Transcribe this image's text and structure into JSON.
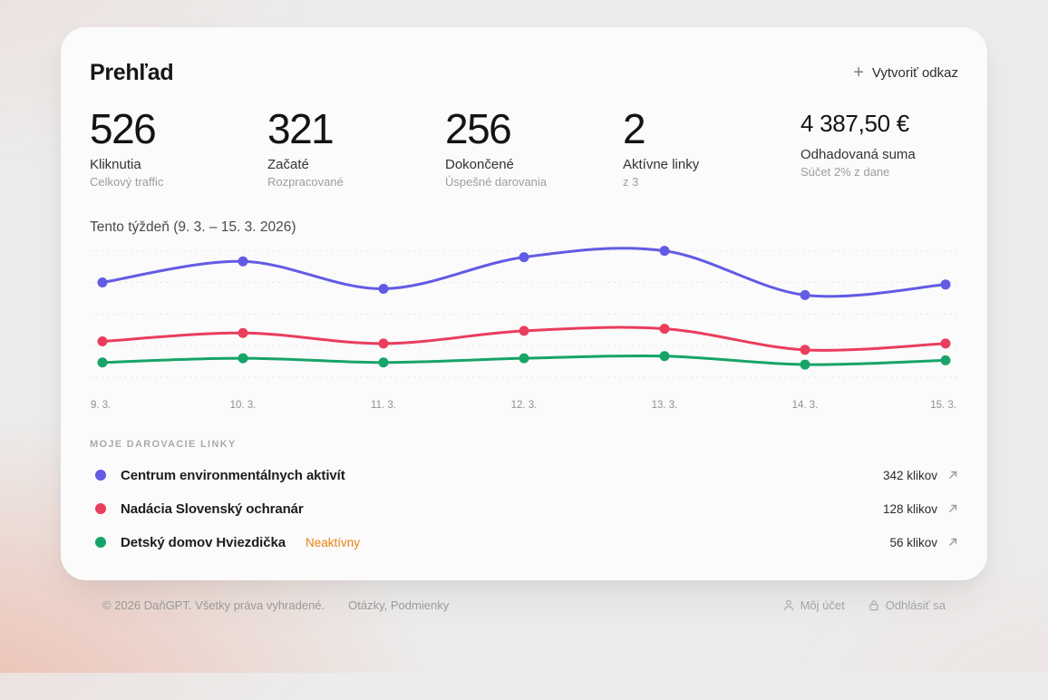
{
  "header": {
    "title": "Prehľad",
    "create_link_label": "Vytvoriť odkaz"
  },
  "stats": [
    {
      "value": "526",
      "label": "Kliknutia",
      "sublabel": "Celkový traffic",
      "small": false
    },
    {
      "value": "321",
      "label": "Začaté",
      "sublabel": "Rozpracované",
      "small": false
    },
    {
      "value": "256",
      "label": "Dokončené",
      "sublabel": "Úspešné darovania",
      "small": false
    },
    {
      "value": "2",
      "label": "Aktívne linky",
      "sublabel": "z 3",
      "small": false
    },
    {
      "value": "4 387,50 €",
      "label": "Odhadovaná suma",
      "sublabel": "Súčet 2% z dane",
      "small": true
    }
  ],
  "chart_data": {
    "type": "line",
    "title": "Tento týždeň (9. 3. – 15. 3. 2026)",
    "x": [
      "9. 3.",
      "10. 3.",
      "11. 3.",
      "12. 3.",
      "13. 3.",
      "14. 3.",
      "15. 3."
    ],
    "series": [
      {
        "name": "Centrum environmentálnych aktivít",
        "color": "#625be4",
        "values": [
          45,
          55,
          42,
          57,
          60,
          39,
          44
        ]
      },
      {
        "name": "Nadácia Slovenský ochranár",
        "color": "#ea3d5e",
        "values": [
          17,
          21,
          16,
          22,
          23,
          13,
          16
        ]
      },
      {
        "name": "Detský domov Hviezdička",
        "color": "#18a468",
        "values": [
          7,
          9,
          7,
          9,
          10,
          6,
          8
        ]
      }
    ],
    "ylim": [
      0,
      62
    ],
    "gridlines": [
      0,
      15,
      30,
      45,
      60
    ],
    "grid": "horizontal-dashed",
    "legend": "none",
    "grid_color": "#dedede"
  },
  "links_section": {
    "heading": "MOJE DAROVACIE LINKY",
    "items": [
      {
        "name": "Centrum environmentálnych aktivít",
        "color": "#625be4",
        "clicks": "342 klikov",
        "badge": ""
      },
      {
        "name": "Nadácia Slovenský ochranár",
        "color": "#ea3d5e",
        "clicks": "128 klikov",
        "badge": ""
      },
      {
        "name": "Detský domov Hviezdička",
        "color": "#18a468",
        "clicks": "56 klikov",
        "badge": "Neaktívny"
      }
    ]
  },
  "footer": {
    "copyright": "© 2026 DaňGPT. Všetky práva vyhradené.",
    "links": [
      "Otázky",
      "Podmienky"
    ],
    "account": "Môj účet",
    "logout": "Odhlásiť sa"
  }
}
